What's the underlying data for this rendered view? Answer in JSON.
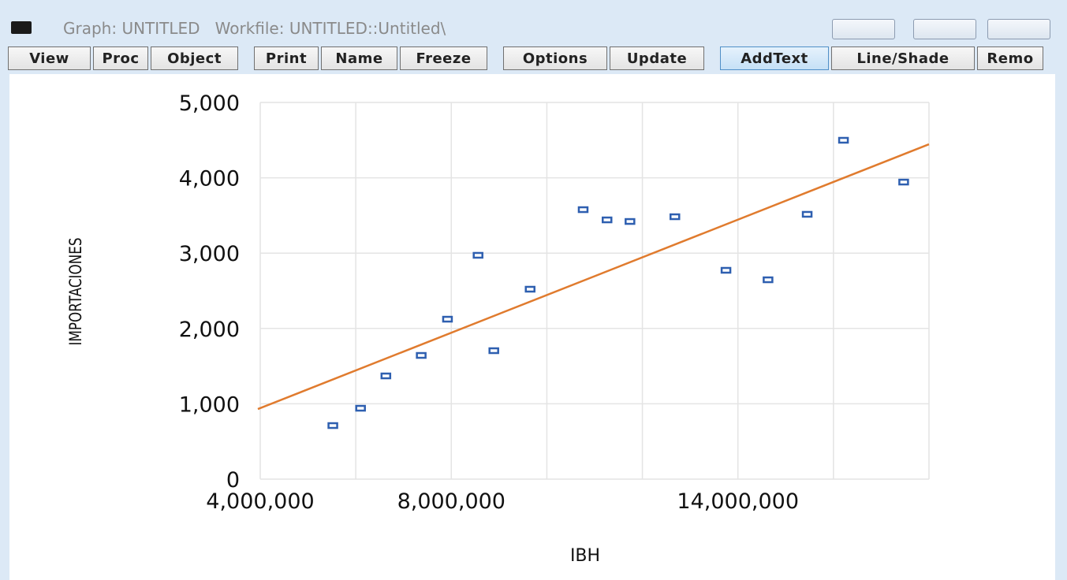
{
  "window": {
    "title": "Graph: UNTITLED   Workfile: UNTITLED::Untitled\\"
  },
  "toolbar": {
    "buttons": [
      "View",
      "Proc",
      "Object",
      "Print",
      "Name",
      "Freeze",
      "Options",
      "Update",
      "AddText",
      "Line/Shade",
      "Remo"
    ]
  },
  "chart_data": {
    "type": "scatter",
    "xlabel": "IBH",
    "ylabel": "IMPORTACIONES",
    "x": [
      5520000,
      6100000,
      6630000,
      7370000,
      7920000,
      8560000,
      8890000,
      9650000,
      10760000,
      11260000,
      11740000,
      12680000,
      13750000,
      14630000,
      15450000,
      16210000,
      17470000
    ],
    "y": [
      711,
      941,
      1370,
      1642,
      2123,
      2971,
      1705,
      2521,
      3577,
      3441,
      3420,
      3483,
      2772,
      2646,
      3515,
      4498,
      3943
    ],
    "color": "#2e5fb0",
    "fit_line": {
      "color": "#e07b2e",
      "x": [
        3950000,
        18000000
      ],
      "y": [
        930,
        4445
      ]
    },
    "xlim": [
      4000000,
      18000000
    ],
    "xticks": [
      {
        "value": 4000000,
        "label": "4,000,000"
      },
      {
        "value": 6000000,
        "label": null
      },
      {
        "value": 8000000,
        "label": "8,000,000"
      },
      {
        "value": 10000000,
        "label": null
      },
      {
        "value": 12000000,
        "label": null
      },
      {
        "value": 14000000,
        "label": "14,000,000"
      },
      {
        "value": 16000000,
        "label": null
      },
      {
        "value": 18000000,
        "label": null
      }
    ],
    "ylim": [
      0,
      5000
    ],
    "yticks": [
      {
        "value": 0,
        "label": "0"
      },
      {
        "value": 1000,
        "label": "1,000"
      },
      {
        "value": 2000,
        "label": "2,000"
      },
      {
        "value": 3000,
        "label": "3,000"
      },
      {
        "value": 4000,
        "label": "4,000"
      },
      {
        "value": 5000,
        "label": "5,000"
      }
    ],
    "grid": true
  }
}
